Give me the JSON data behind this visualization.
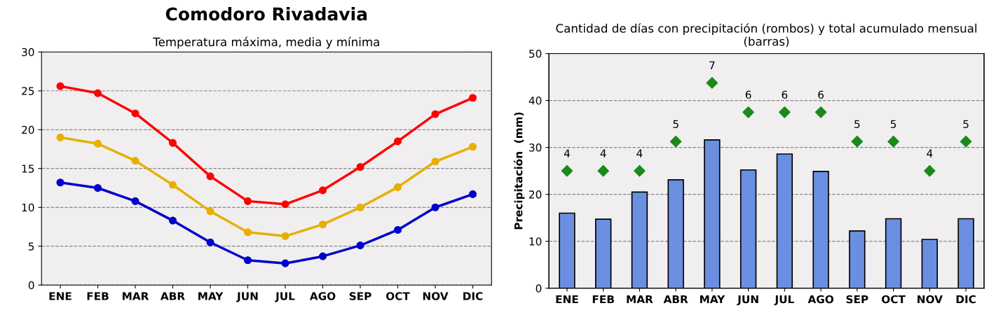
{
  "chart_data": [
    {
      "type": "line",
      "title": "Comodoro Rivadavia",
      "subtitle": "Temperatura máxima, media y mínima",
      "categories": [
        "ENE",
        "FEB",
        "MAR",
        "ABR",
        "MAY",
        "JUN",
        "JUL",
        "AGO",
        "SEP",
        "OCT",
        "NOV",
        "DIC"
      ],
      "series": [
        {
          "color": "#ff0000",
          "values": [
            25.6,
            24.7,
            22.1,
            18.3,
            14.0,
            10.8,
            10.4,
            12.2,
            15.2,
            18.5,
            22.0,
            24.1
          ]
        },
        {
          "color": "#e6b000",
          "values": [
            19.0,
            18.2,
            16.0,
            12.9,
            9.5,
            6.8,
            6.3,
            7.8,
            10.0,
            12.6,
            15.9,
            17.8
          ]
        },
        {
          "color": "#0000cc",
          "values": [
            13.2,
            12.5,
            10.8,
            8.3,
            5.5,
            3.2,
            2.8,
            3.7,
            5.1,
            7.1,
            10.0,
            11.7
          ]
        }
      ],
      "ylim": [
        0,
        30
      ],
      "yticks": [
        0,
        5,
        10,
        15,
        20,
        25,
        30
      ],
      "grid": "y",
      "marker": "circle",
      "line_style": "solid"
    },
    {
      "type": "bar",
      "title": "Cantidad de días con precipitación (rombos) y total acumulado mensual (barras)",
      "ylabel": "Precipitación  (mm)",
      "categories": [
        "ENE",
        "FEB",
        "MAR",
        "ABR",
        "MAY",
        "JUN",
        "JUL",
        "AGO",
        "SEP",
        "OCT",
        "NOV",
        "DIC"
      ],
      "series": [
        {
          "color": "#6b8fe0",
          "values": [
            16.0,
            14.7,
            20.5,
            23.1,
            31.6,
            25.2,
            28.6,
            24.9,
            12.2,
            14.8,
            10.4,
            14.8
          ]
        },
        {
          "type": "scatter",
          "axis": "y2",
          "color": "#1a8a1a",
          "values": [
            4,
            4,
            4,
            5,
            7,
            6,
            6,
            6,
            5,
            5,
            4,
            5
          ],
          "value_labels": [
            "4",
            "4",
            "4",
            "5",
            "7",
            "6",
            "6",
            "6",
            "5",
            "5",
            "4",
            "5"
          ]
        }
      ],
      "ylim": [
        0,
        50
      ],
      "yticks": [
        0,
        10,
        20,
        30,
        40,
        50
      ],
      "y2lim": [
        0,
        8
      ],
      "grid": "y",
      "marker": "diamond"
    }
  ]
}
